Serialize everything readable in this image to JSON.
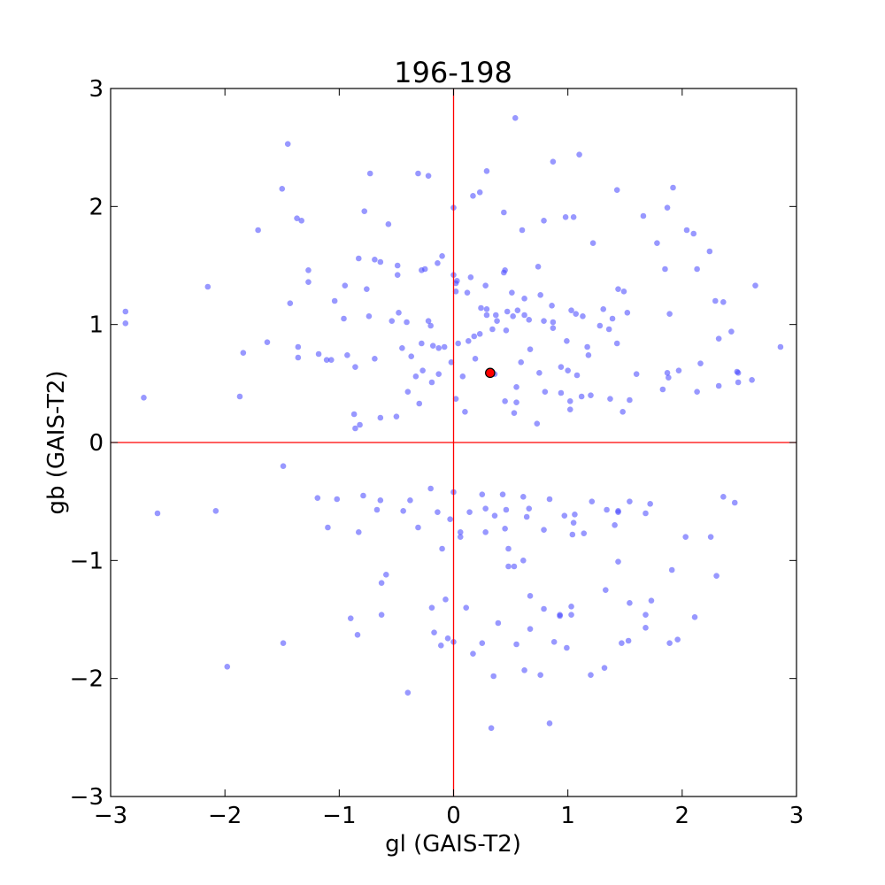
{
  "chart_data": {
    "type": "scatter",
    "title": "196-198",
    "xlabel": "gl (GAIS-T2)",
    "ylabel": "gb (GAIS-T2)",
    "xlim": [
      -3,
      3
    ],
    "ylim": [
      -3,
      3
    ],
    "xticks": [
      -3,
      -2,
      -1,
      0,
      1,
      2,
      3
    ],
    "yticks": [
      -3,
      -2,
      -1,
      0,
      1,
      2,
      3
    ],
    "xtick_labels": [
      "−3",
      "−2",
      "−1",
      "0",
      "1",
      "2",
      "3"
    ],
    "ytick_labels": [
      "−3",
      "−2",
      "−1",
      "0",
      "1",
      "2",
      "3"
    ],
    "grid": false,
    "reference_lines": {
      "x": 0,
      "y": 0,
      "color": "#ff0000"
    },
    "highlight_point": {
      "x": 0.32,
      "y": 0.59,
      "color": "#ff0000"
    },
    "series": [
      {
        "color": "#4444ff",
        "x": [
          0.54,
          1.1,
          -1.45,
          0.29,
          -0.73,
          -0.31,
          -0.22,
          0.87,
          -1.5,
          -0.78,
          0.17,
          1.43,
          -1.37,
          -1.33,
          0.23,
          1.66,
          1.92,
          1.87,
          -1.71,
          -0.57,
          0.44,
          0.0,
          1.05,
          0.98,
          0.79,
          0.6,
          2.04,
          2.1,
          1.78,
          1.22,
          2.24,
          -1.27,
          -1.27,
          -0.83,
          -0.69,
          -0.64,
          0.45,
          0.44,
          0.74,
          1.85,
          2.13,
          -0.49,
          -0.49,
          -0.1,
          -0.14,
          -0.28,
          -0.25,
          0.0,
          0.02,
          0.03,
          0.15,
          0.28,
          0.02,
          -2.15,
          -0.95,
          -0.76,
          0.12,
          0.51,
          0.62,
          -1.43,
          2.64,
          1.49,
          0.76,
          1.44,
          2.29,
          2.36,
          -2.87,
          -2.87,
          -1.04,
          -0.48,
          0.24,
          0.47,
          0.86,
          1.03,
          1.31,
          1.52,
          1.89,
          0.29,
          0.29,
          0.37,
          0.56,
          0.62,
          -0.96,
          -0.74,
          -0.54,
          -0.41,
          -0.22,
          -0.2,
          0.38,
          0.52,
          0.66,
          0.79,
          0.87,
          0.87,
          1.07,
          1.13,
          0.18,
          0.23,
          0.34,
          0.46,
          1.28,
          1.36,
          1.39,
          -1.36,
          -1.36,
          -1.18,
          -1.11,
          -0.93,
          -0.69,
          -0.45,
          -0.28,
          -0.18,
          -0.13,
          -0.08,
          0.04,
          0.13,
          0.67,
          0.99,
          1.17,
          1.43,
          2.32,
          2.43,
          2.48,
          2.49,
          -0.33,
          -0.19,
          0.59,
          1.18,
          1.88,
          1.87,
          2.86,
          -1.84,
          -1.63,
          -1.07,
          -0.86,
          -0.37,
          -0.27,
          -0.13,
          -0.02,
          0.08,
          0.19,
          0.36,
          0.55,
          0.75,
          0.94,
          1.0,
          1.08,
          1.6,
          1.97,
          2.16,
          2.49,
          -0.86,
          -0.82,
          -0.64,
          -0.5,
          0.1,
          0.53,
          0.73,
          -0.4,
          -0.3,
          0.45,
          0.55,
          1.02,
          1.48,
          1.54,
          -1.87,
          -0.87,
          0.02,
          0.8,
          0.94,
          1.02,
          1.12,
          1.2,
          1.37,
          1.83,
          2.13,
          2.32,
          2.61,
          -2.71,
          -1.49,
          -1.02,
          -0.64,
          -0.38,
          -0.2,
          0.0,
          0.25,
          0.43,
          0.61,
          0.84,
          1.21,
          1.44,
          1.54,
          1.72,
          2.36,
          2.46,
          -1.19,
          -0.83,
          -0.67,
          -0.14,
          0.14,
          0.28,
          0.46,
          0.66,
          0.97,
          1.06,
          1.34,
          1.44,
          1.68,
          -2.59,
          -2.08,
          -0.79,
          -0.44,
          -0.03,
          0.36,
          0.45,
          0.64,
          0.79,
          1.04,
          1.14,
          2.03,
          2.25,
          -0.31,
          0.06,
          0.28,
          0.48,
          1.05,
          1.41,
          -1.1,
          -0.1,
          0.06,
          0.61,
          1.44,
          1.91,
          2.3,
          -0.59,
          0.48,
          0.53,
          0.67,
          0.93,
          1.03,
          1.33,
          1.54,
          1.68,
          1.73,
          -0.63,
          -0.07,
          0.39,
          0.99,
          -0.19,
          -0.17,
          -0.05,
          0.88,
          1.68,
          1.89,
          1.96,
          2.11,
          -1.98,
          0.55,
          0.76,
          1.03,
          1.32,
          -0.84,
          -1.49,
          -0.63,
          -0.9,
          -0.11,
          0.17,
          0.33,
          -0.4,
          0.0,
          0.35,
          0.62,
          0.93,
          1.2,
          0.11,
          0.25,
          0.67,
          0.84,
          0.79,
          1.47,
          1.53
        ],
        "y": [
          2.75,
          2.44,
          2.53,
          2.3,
          2.28,
          2.28,
          2.26,
          2.38,
          2.15,
          1.96,
          2.09,
          2.14,
          1.9,
          1.88,
          2.12,
          1.92,
          2.16,
          1.99,
          1.8,
          1.85,
          1.95,
          1.99,
          1.91,
          1.91,
          1.88,
          1.8,
          1.8,
          1.77,
          1.69,
          1.69,
          1.62,
          1.46,
          1.36,
          1.56,
          1.55,
          1.53,
          1.46,
          1.44,
          1.49,
          1.47,
          1.47,
          1.5,
          1.42,
          1.58,
          1.52,
          1.46,
          1.47,
          1.42,
          1.35,
          1.37,
          1.4,
          1.33,
          1.28,
          1.32,
          1.33,
          1.3,
          1.27,
          1.27,
          1.22,
          1.18,
          1.33,
          1.28,
          1.25,
          1.3,
          1.2,
          1.19,
          1.11,
          1.01,
          1.2,
          1.1,
          1.14,
          1.11,
          1.16,
          1.12,
          1.13,
          1.1,
          1.09,
          1.13,
          1.08,
          1.08,
          1.12,
          1.08,
          1.05,
          1.07,
          1.03,
          1.02,
          1.03,
          0.99,
          1.03,
          1.07,
          1.04,
          1.03,
          0.97,
          1.02,
          1.09,
          1.07,
          0.9,
          0.92,
          0.96,
          0.95,
          0.99,
          0.96,
          1.05,
          0.81,
          0.72,
          0.75,
          0.7,
          0.74,
          0.71,
          0.8,
          0.84,
          0.82,
          0.8,
          0.81,
          0.84,
          0.86,
          0.79,
          0.86,
          0.81,
          0.84,
          0.88,
          0.94,
          0.6,
          0.51,
          0.56,
          0.51,
          0.68,
          0.74,
          0.55,
          0.59,
          0.81,
          0.76,
          0.85,
          0.7,
          0.64,
          0.73,
          0.61,
          0.58,
          0.68,
          0.56,
          0.71,
          0.58,
          0.47,
          0.59,
          0.64,
          0.61,
          0.57,
          0.58,
          0.61,
          0.67,
          0.59,
          0.12,
          0.15,
          0.21,
          0.22,
          0.26,
          0.25,
          0.16,
          0.43,
          0.33,
          0.35,
          0.34,
          0.28,
          0.26,
          0.36,
          0.39,
          0.24,
          0.37,
          0.43,
          0.42,
          0.35,
          0.39,
          0.4,
          0.37,
          0.45,
          0.43,
          0.48,
          0.53,
          0.38,
          -0.2,
          -0.48,
          -0.49,
          -0.49,
          -0.39,
          -0.42,
          -0.44,
          -0.44,
          -0.46,
          -0.48,
          -0.5,
          -0.58,
          -0.5,
          -0.52,
          -0.46,
          -0.51,
          -0.47,
          -0.76,
          -0.57,
          -0.59,
          -0.59,
          -0.56,
          -0.57,
          -0.56,
          -0.62,
          -0.61,
          -0.57,
          -0.59,
          -0.6,
          -0.6,
          -0.58,
          -0.45,
          -0.58,
          -0.65,
          -0.62,
          -0.73,
          -0.63,
          -0.74,
          -0.78,
          -0.77,
          -0.8,
          -0.8,
          -0.72,
          -0.8,
          -0.76,
          -0.9,
          -0.68,
          -0.7,
          -0.72,
          -0.9,
          -0.76,
          -1.0,
          -1.01,
          -1.08,
          -1.13,
          -1.12,
          -1.05,
          -1.05,
          -1.3,
          -1.46,
          -1.39,
          -1.25,
          -1.36,
          -1.46,
          -1.34,
          -1.46,
          -1.33,
          -1.53,
          -1.74,
          -1.4,
          -1.61,
          -1.66,
          -1.69,
          -1.57,
          -1.7,
          -1.67,
          -1.48,
          -1.9,
          -1.71,
          -1.97,
          -1.46,
          -1.91,
          -1.63,
          -1.7,
          -1.19,
          -1.49,
          -1.72,
          -1.79,
          -2.42,
          -2.12,
          -1.69,
          -1.98,
          -1.93,
          -1.47,
          -1.97,
          -1.4,
          -1.7,
          -1.58,
          -2.38,
          -1.41,
          -1.7,
          -1.68
        ]
      }
    ]
  }
}
